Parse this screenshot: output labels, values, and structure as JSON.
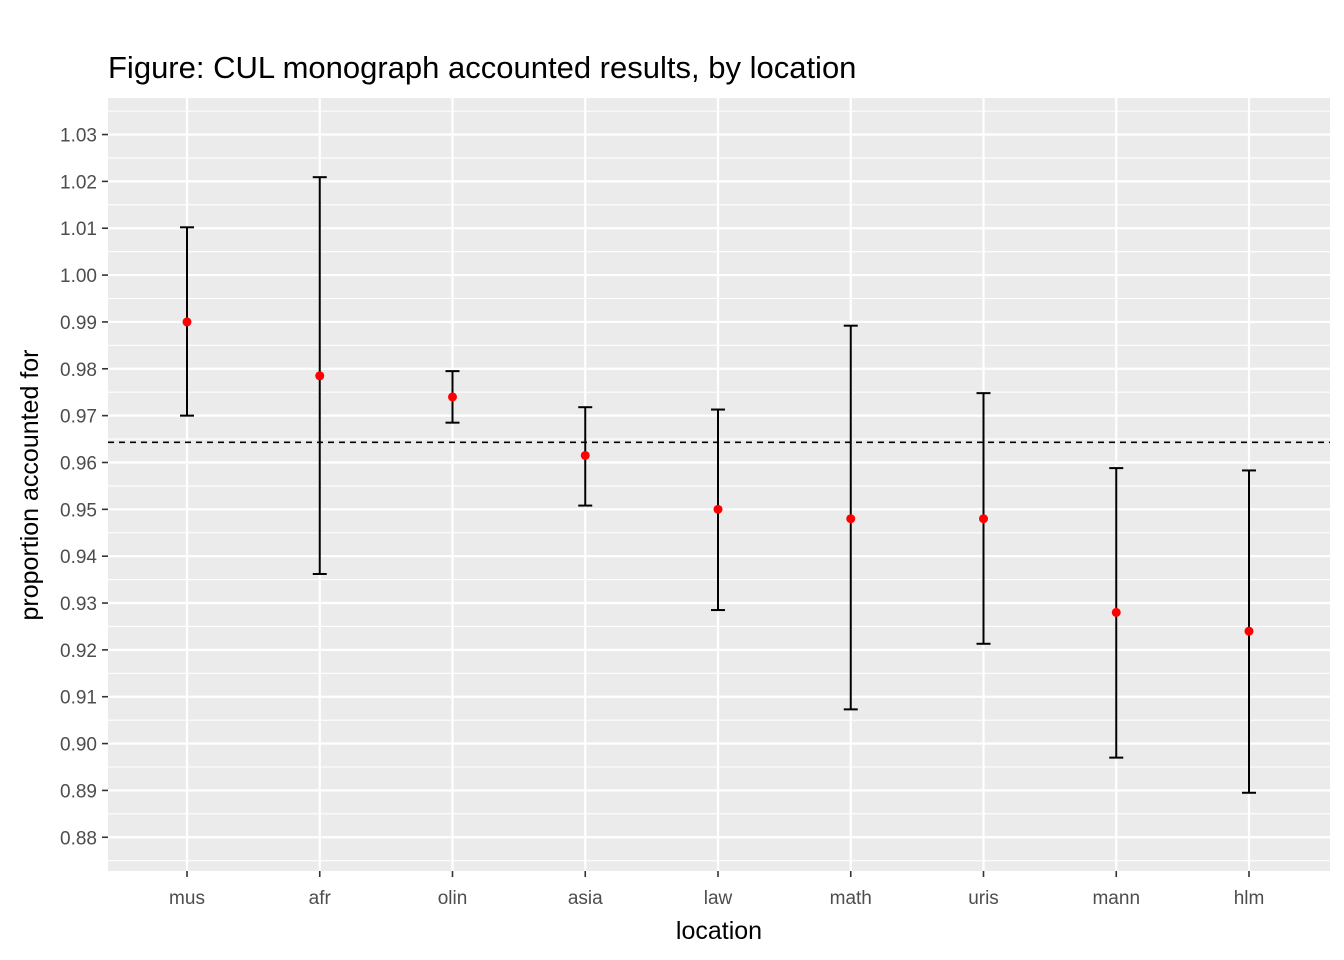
{
  "chart_data": {
    "type": "errorbar",
    "title": "Figure: CUL monograph accounted results, by location",
    "xlabel": "location",
    "ylabel": "proportion accounted for",
    "categories": [
      "mus",
      "afr",
      "olin",
      "asia",
      "law",
      "math",
      "uris",
      "mann",
      "hlm"
    ],
    "estimates": [
      0.99,
      0.9785,
      0.974,
      0.9615,
      0.95,
      0.948,
      0.948,
      0.928,
      0.924
    ],
    "lower": [
      0.97,
      0.9362,
      0.9685,
      0.9508,
      0.9285,
      0.9073,
      0.9213,
      0.897,
      0.8895
    ],
    "upper": [
      1.0102,
      1.0209,
      0.9795,
      0.9718,
      0.9713,
      0.9892,
      0.9748,
      0.9588,
      0.9583
    ],
    "reference_line": 0.9643,
    "yticks": [
      "0.88",
      "0.89",
      "0.90",
      "0.91",
      "0.92",
      "0.93",
      "0.94",
      "0.95",
      "0.96",
      "0.97",
      "0.98",
      "0.99",
      "1.00",
      "1.01",
      "1.02",
      "1.03"
    ],
    "ylim": [
      0.8728,
      1.0378
    ],
    "grid": true,
    "colors": {
      "panel": "#ebebeb",
      "grid": "#ffffff",
      "point": "#ff0000",
      "errorbar": "#000000",
      "reference_line": "#000000"
    }
  }
}
